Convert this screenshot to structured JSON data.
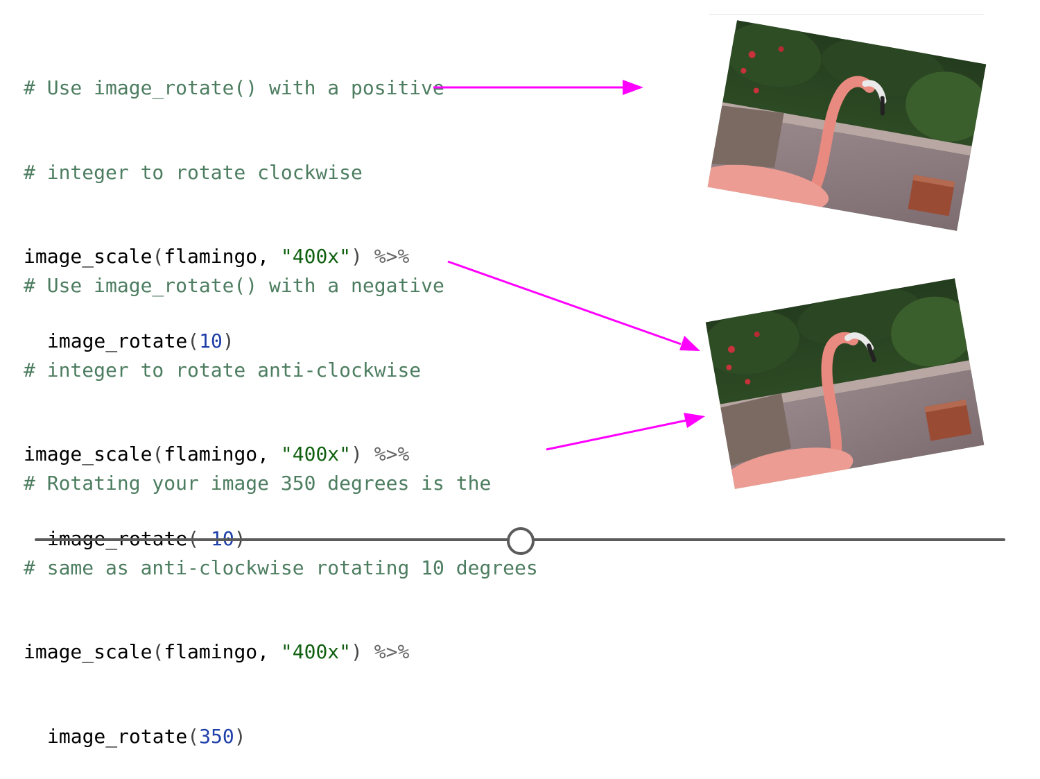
{
  "code_blocks": [
    {
      "comment_1": "# Use image_rotate() with a positive",
      "comment_2": "# integer to rotate clockwise",
      "scale_func": "image_scale",
      "open_paren": "(",
      "arg_obj": "flamingo, ",
      "arg_str": "\"400x\"",
      "close_paren": ")",
      "pipe": " %>%",
      "rotate_func": "image_rotate",
      "rotate_open": "(",
      "rotate_value": "10",
      "rotate_close": ")"
    },
    {
      "comment_1": "# Use image_rotate() with a negative",
      "comment_2": "# integer to rotate anti-clockwise",
      "scale_func": "image_scale",
      "open_paren": "(",
      "arg_obj": "flamingo, ",
      "arg_str": "\"400x\"",
      "close_paren": ")",
      "pipe": " %>%",
      "rotate_func": "image_rotate",
      "rotate_open": "(",
      "rotate_value": "-10",
      "rotate_close": ")"
    },
    {
      "comment_1": "# Rotating your image 350 degrees is the",
      "comment_2": "# same as anti-clockwise rotating 10 degrees",
      "scale_func": "image_scale",
      "open_paren": "(",
      "arg_obj": "flamingo, ",
      "arg_str": "\"400x\"",
      "close_paren": ")",
      "pipe": " %>%",
      "rotate_func": "image_rotate",
      "rotate_open": "(",
      "rotate_value": "350",
      "rotate_close": ")"
    }
  ],
  "images": [
    {
      "subject": "flamingo-photo",
      "rotation_degrees": 10
    },
    {
      "subject": "flamingo-photo",
      "rotation_degrees": -10
    }
  ],
  "colors": {
    "comment": "#4d7d60",
    "string": "#106010",
    "number": "#1f3fa8",
    "arrow": "#ff00ff",
    "slider": "#5b5b5b"
  },
  "slider": {
    "position_fraction": 0.5
  }
}
